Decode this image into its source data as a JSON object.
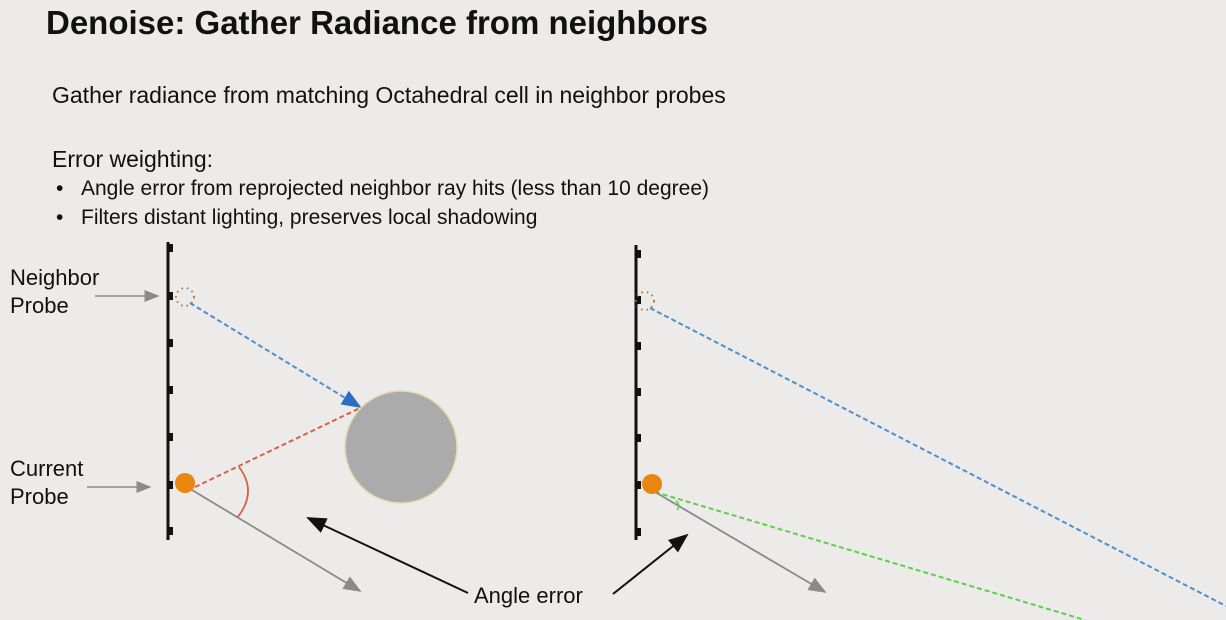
{
  "slide": {
    "title": "Denoise: Gather Radiance from neighbors",
    "intro": "Gather radiance from matching Octahedral cell in neighbor probes",
    "error_heading": "Error weighting:",
    "bullets": [
      "Angle error from reprojected neighbor ray hits (less than 10 degree)",
      "Filters distant lighting, preserves local shadowing"
    ]
  },
  "diagram": {
    "neighbor_label_1": "Neighbor",
    "neighbor_label_2": "Probe",
    "current_label_1": "Current",
    "current_label_2": "Probe",
    "angle_error_label": "Angle error",
    "colors": {
      "probe": "#e8860f",
      "neighbor_ray": "#4a8fd0",
      "current_ray_large_error": "#d9604a",
      "current_ray_small_error": "#5ccf4a",
      "sphere": "#ababab",
      "reference_ray": "#8a8a8a"
    }
  }
}
